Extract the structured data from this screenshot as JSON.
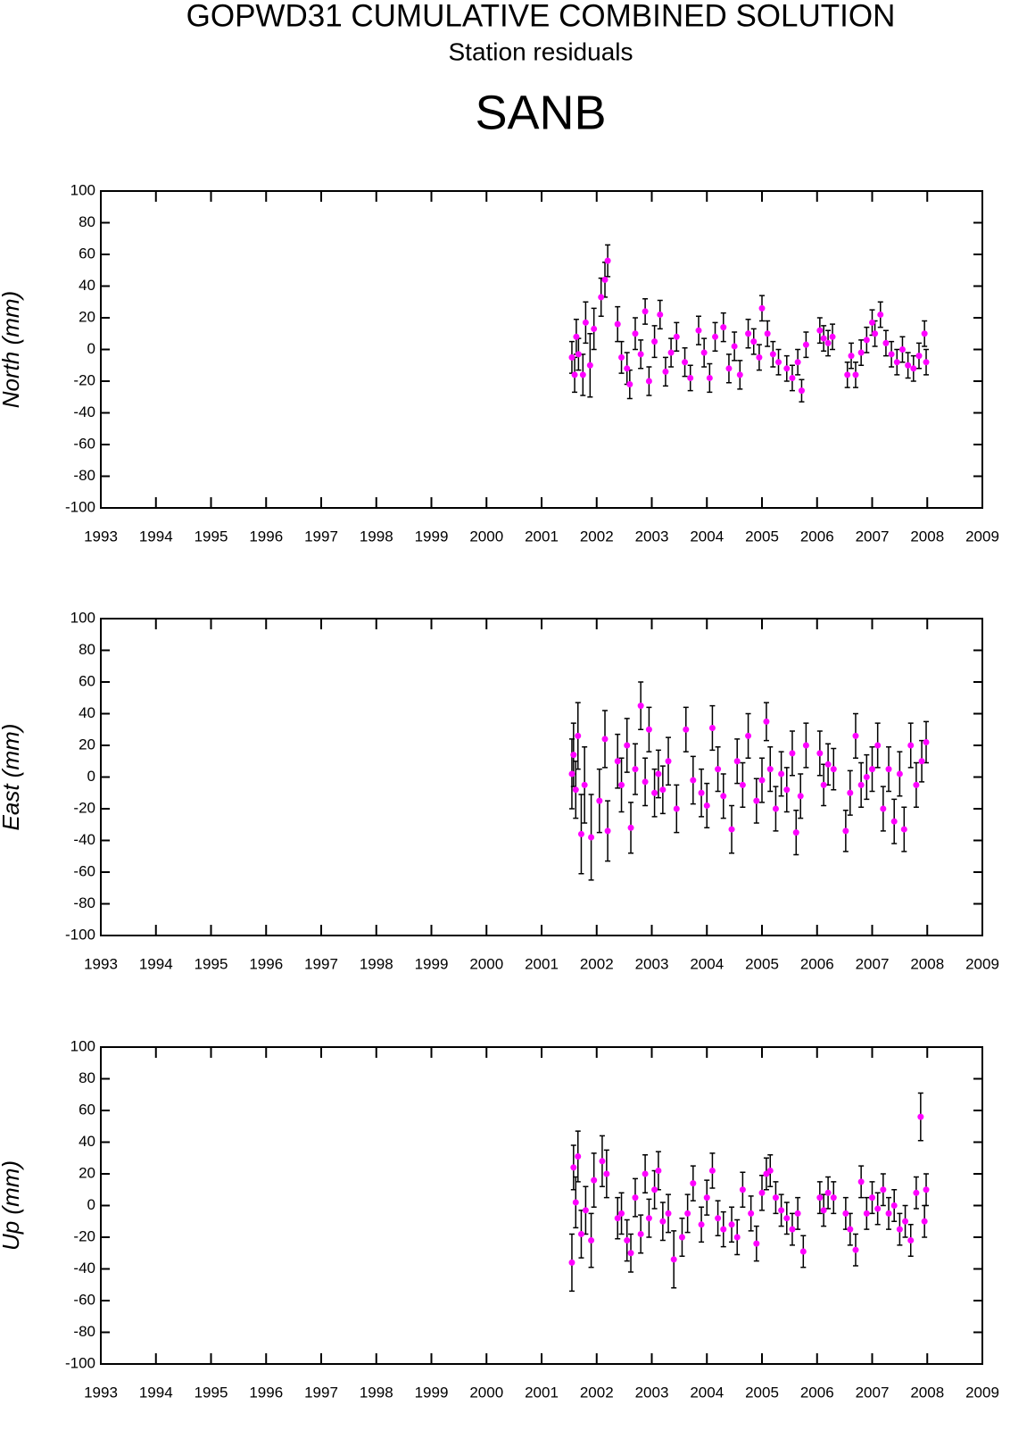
{
  "header": {
    "title": "GOPWD31 CUMULATIVE COMBINED SOLUTION",
    "subtitle": "Station residuals",
    "station": "SANB"
  },
  "chart_data": [
    {
      "type": "scatter",
      "ylabel": "North (mm)",
      "color": "#ff00ff",
      "x": [
        2001.55,
        2001.6,
        2001.63,
        2001.67,
        2001.75,
        2001.8,
        2001.88,
        2001.95,
        2002.08,
        2002.15,
        2002.2,
        2002.38,
        2002.45,
        2002.55,
        2002.6,
        2002.7,
        2002.8,
        2002.88,
        2002.95,
        2003.05,
        2003.15,
        2003.25,
        2003.35,
        2003.45,
        2003.6,
        2003.7,
        2003.85,
        2003.95,
        2004.05,
        2004.15,
        2004.3,
        2004.4,
        2004.5,
        2004.6,
        2004.75,
        2004.85,
        2004.95,
        2005.0,
        2005.1,
        2005.2,
        2005.3,
        2005.45,
        2005.55,
        2005.65,
        2005.72,
        2005.8,
        2006.05,
        2006.12,
        2006.2,
        2006.28,
        2006.55,
        2006.62,
        2006.7,
        2006.8,
        2006.9,
        2007.0,
        2007.05,
        2007.15,
        2007.25,
        2007.35,
        2007.45,
        2007.55,
        2007.65,
        2007.75,
        2007.85,
        2007.95,
        2007.98
      ],
      "values": [
        -5,
        -16,
        8,
        -3,
        -16,
        17,
        -10,
        13,
        33,
        44,
        56,
        16,
        -5,
        -12,
        -22,
        10,
        -3,
        24,
        -20,
        5,
        22,
        -14,
        -2,
        8,
        -8,
        -18,
        12,
        -2,
        -18,
        8,
        14,
        -12,
        2,
        -16,
        10,
        5,
        -5,
        26,
        10,
        -3,
        -8,
        -12,
        -18,
        -8,
        -26,
        3,
        12,
        7,
        4,
        8,
        -16,
        -4,
        -16,
        -2,
        6,
        17,
        10,
        22,
        4,
        -3,
        -8,
        0,
        -10,
        -12,
        -4,
        10,
        -8
      ],
      "errors": [
        10,
        11,
        11,
        10,
        13,
        13,
        20,
        13,
        12,
        11,
        10,
        11,
        10,
        10,
        9,
        10,
        9,
        8,
        9,
        10,
        9,
        9,
        9,
        9,
        9,
        8,
        9,
        9,
        9,
        9,
        9,
        9,
        9,
        9,
        9,
        8,
        8,
        8,
        8,
        8,
        8,
        8,
        8,
        8,
        7,
        8,
        8,
        8,
        8,
        8,
        8,
        8,
        8,
        8,
        8,
        8,
        8,
        8,
        8,
        8,
        8,
        8,
        8,
        8,
        8,
        8,
        8
      ],
      "xlim": [
        1993,
        2009
      ],
      "ylim": [
        -100,
        100
      ],
      "xticks": [
        1993,
        1994,
        1995,
        1996,
        1997,
        1998,
        1999,
        2000,
        2001,
        2002,
        2003,
        2004,
        2005,
        2006,
        2007,
        2008,
        2009
      ],
      "yticks": [
        -100,
        -80,
        -60,
        -40,
        -20,
        0,
        20,
        40,
        60,
        80,
        100
      ]
    },
    {
      "type": "scatter",
      "ylabel": "East (mm)",
      "color": "#ff00ff",
      "x": [
        2001.55,
        2001.58,
        2001.62,
        2001.66,
        2001.72,
        2001.78,
        2001.9,
        2002.05,
        2002.15,
        2002.2,
        2002.38,
        2002.45,
        2002.55,
        2002.62,
        2002.7,
        2002.8,
        2002.88,
        2002.95,
        2003.05,
        2003.12,
        2003.2,
        2003.3,
        2003.45,
        2003.62,
        2003.75,
        2003.9,
        2004.0,
        2004.1,
        2004.2,
        2004.3,
        2004.45,
        2004.55,
        2004.65,
        2004.75,
        2004.9,
        2005.0,
        2005.08,
        2005.15,
        2005.25,
        2005.35,
        2005.45,
        2005.55,
        2005.62,
        2005.7,
        2005.8,
        2006.05,
        2006.12,
        2006.2,
        2006.3,
        2006.52,
        2006.6,
        2006.7,
        2006.8,
        2006.9,
        2007.0,
        2007.1,
        2007.2,
        2007.3,
        2007.4,
        2007.5,
        2007.58,
        2007.7,
        2007.8,
        2007.9,
        2007.98
      ],
      "values": [
        2,
        14,
        -8,
        26,
        -36,
        -5,
        -38,
        -15,
        24,
        -34,
        10,
        -5,
        20,
        -32,
        5,
        45,
        -3,
        30,
        -10,
        2,
        -8,
        10,
        -20,
        30,
        -2,
        -10,
        -18,
        31,
        5,
        -12,
        -33,
        10,
        -5,
        26,
        -15,
        -2,
        35,
        5,
        -20,
        2,
        -8,
        15,
        -35,
        -12,
        20,
        15,
        -5,
        8,
        5,
        -34,
        -10,
        26,
        -5,
        0,
        5,
        20,
        -20,
        5,
        -28,
        2,
        -33,
        20,
        -5,
        10,
        22
      ],
      "errors": [
        22,
        20,
        18,
        21,
        25,
        24,
        27,
        20,
        18,
        19,
        17,
        17,
        17,
        16,
        16,
        15,
        15,
        14,
        15,
        15,
        15,
        15,
        15,
        14,
        15,
        15,
        14,
        14,
        14,
        14,
        15,
        14,
        14,
        14,
        14,
        14,
        12,
        14,
        14,
        14,
        14,
        14,
        14,
        14,
        14,
        14,
        13,
        13,
        13,
        13,
        14,
        14,
        14,
        14,
        14,
        14,
        14,
        14,
        14,
        14,
        14,
        14,
        14,
        13,
        13
      ],
      "xlim": [
        1993,
        2009
      ],
      "ylim": [
        -100,
        100
      ],
      "xticks": [
        1993,
        1994,
        1995,
        1996,
        1997,
        1998,
        1999,
        2000,
        2001,
        2002,
        2003,
        2004,
        2005,
        2006,
        2007,
        2008,
        2009
      ],
      "yticks": [
        -100,
        -80,
        -60,
        -40,
        -20,
        0,
        20,
        40,
        60,
        80,
        100
      ]
    },
    {
      "type": "scatter",
      "ylabel": "Up (mm)",
      "color": "#ff00ff",
      "x": [
        2001.55,
        2001.58,
        2001.62,
        2001.66,
        2001.72,
        2001.8,
        2001.9,
        2001.95,
        2002.1,
        2002.18,
        2002.38,
        2002.45,
        2002.55,
        2002.62,
        2002.7,
        2002.8,
        2002.88,
        2002.95,
        2003.05,
        2003.12,
        2003.2,
        2003.3,
        2003.4,
        2003.55,
        2003.65,
        2003.75,
        2003.9,
        2004.0,
        2004.1,
        2004.2,
        2004.3,
        2004.45,
        2004.55,
        2004.65,
        2004.8,
        2004.9,
        2005.0,
        2005.08,
        2005.15,
        2005.25,
        2005.35,
        2005.45,
        2005.55,
        2005.65,
        2005.75,
        2006.05,
        2006.12,
        2006.2,
        2006.3,
        2006.52,
        2006.6,
        2006.7,
        2006.8,
        2006.9,
        2007.0,
        2007.1,
        2007.2,
        2007.3,
        2007.4,
        2007.5,
        2007.6,
        2007.7,
        2007.8,
        2007.88,
        2007.95,
        2007.98
      ],
      "values": [
        -36,
        24,
        2,
        31,
        -18,
        -3,
        -22,
        16,
        28,
        20,
        -8,
        -5,
        -22,
        -30,
        5,
        -18,
        20,
        -8,
        10,
        22,
        -10,
        -5,
        -34,
        -20,
        -5,
        14,
        -12,
        5,
        22,
        -8,
        -15,
        -12,
        -20,
        10,
        -5,
        -24,
        8,
        20,
        22,
        5,
        -3,
        -8,
        -15,
        -5,
        -29,
        5,
        -3,
        8,
        5,
        -5,
        -15,
        -28,
        15,
        -5,
        5,
        -2,
        10,
        -5,
        0,
        -15,
        -10,
        -22,
        8,
        56,
        -10,
        10
      ],
      "errors": [
        18,
        14,
        16,
        16,
        15,
        15,
        17,
        17,
        16,
        15,
        13,
        13,
        13,
        12,
        12,
        12,
        12,
        12,
        12,
        12,
        12,
        12,
        18,
        12,
        12,
        11,
        11,
        11,
        11,
        11,
        11,
        11,
        11,
        11,
        11,
        11,
        11,
        10,
        10,
        10,
        10,
        10,
        10,
        10,
        10,
        10,
        10,
        10,
        10,
        10,
        10,
        10,
        10,
        10,
        10,
        10,
        10,
        10,
        10,
        10,
        10,
        10,
        10,
        15,
        10,
        10
      ],
      "xlim": [
        1993,
        2009
      ],
      "ylim": [
        -100,
        100
      ],
      "xticks": [
        1993,
        1994,
        1995,
        1996,
        1997,
        1998,
        1999,
        2000,
        2001,
        2002,
        2003,
        2004,
        2005,
        2006,
        2007,
        2008,
        2009
      ],
      "yticks": [
        -100,
        -80,
        -60,
        -40,
        -20,
        0,
        20,
        40,
        60,
        80,
        100
      ]
    }
  ]
}
